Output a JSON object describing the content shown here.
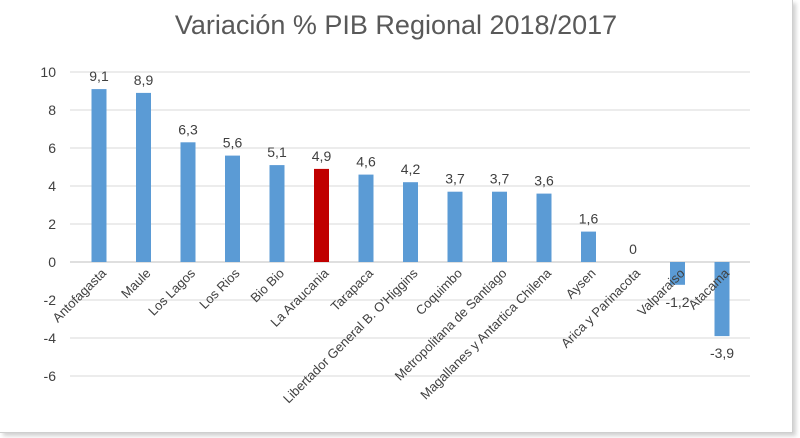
{
  "chart_data": {
    "type": "bar",
    "title": "Variación % PIB Regional 2018/2017",
    "categories": [
      "Antofagasta",
      "Maule",
      "Los Lagos",
      "Los Rios",
      "Bio Bio",
      "La Araucania",
      "Tarapaca",
      "Libertador General B. O'Higgins",
      "Coquimbo",
      "Metropolitana de Santiago",
      "Magallanes y Antartica Chilena",
      "Aysen",
      "Arica y Parinacota",
      "Valparaiso",
      "Atacama"
    ],
    "values": [
      9.1,
      8.9,
      6.3,
      5.6,
      5.1,
      4.9,
      4.6,
      4.2,
      3.7,
      3.7,
      3.6,
      1.6,
      0,
      -1.2,
      -3.9
    ],
    "data_labels": [
      "9,1",
      "8,9",
      "6,3",
      "5,6",
      "5,1",
      "4,9",
      "4,6",
      "4,2",
      "3,7",
      "3,7",
      "3,6",
      "1,6",
      "0",
      "-1,2",
      "-3,9"
    ],
    "ylim": [
      -6,
      10
    ],
    "yticks": [
      10,
      8,
      6,
      4,
      2,
      0,
      -2,
      -4,
      -6
    ],
    "grid": true,
    "legend": "none",
    "bar_color": "#5b9bd5",
    "highlight_color": "#c00000",
    "highlight_category": "La Araucania"
  }
}
